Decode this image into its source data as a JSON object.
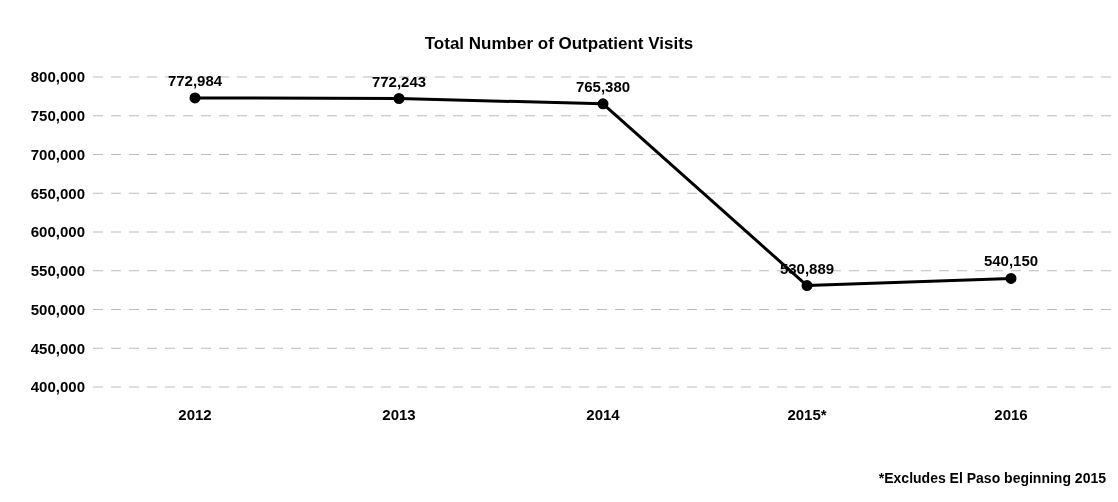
{
  "chart_data": {
    "type": "line",
    "title": "Total Number of Outpatient Visits",
    "categories": [
      "2012",
      "2013",
      "2014",
      "2015*",
      "2016"
    ],
    "series": [
      {
        "color": "#000000",
        "values": [
          772984,
          772243,
          765380,
          530889,
          540150
        ],
        "value_labels": [
          "772,984",
          "772,243",
          "765,380",
          "530,889",
          "540,150"
        ]
      }
    ],
    "ylim": [
      400000,
      800000
    ],
    "yticks": [
      {
        "value": 400000,
        "label": "400,000"
      },
      {
        "value": 450000,
        "label": "450,000"
      },
      {
        "value": 500000,
        "label": "500,000"
      },
      {
        "value": 550000,
        "label": "550,000"
      },
      {
        "value": 600000,
        "label": "600,000"
      },
      {
        "value": 650000,
        "label": "650,000"
      },
      {
        "value": 700000,
        "label": "700,000"
      },
      {
        "value": 750000,
        "label": "750,000"
      },
      {
        "value": 800000,
        "label": "800,000"
      }
    ],
    "grid": "y",
    "marker": "circle",
    "line_style": "solid",
    "annotations": [
      "*Excludes El Paso beginning 2015"
    ]
  }
}
